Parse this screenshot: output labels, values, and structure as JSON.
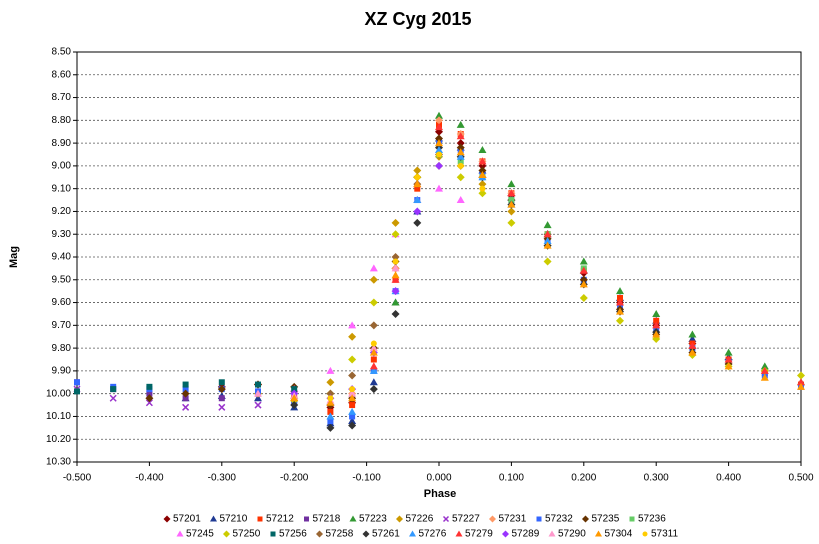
{
  "chart_data": {
    "type": "scatter",
    "title": "XZ Cyg   2015",
    "x_label": "Phase",
    "y_label": "Mag",
    "x": [
      -0.5,
      -0.45,
      -0.4,
      -0.35,
      -0.3,
      -0.25,
      -0.2,
      -0.15,
      -0.12,
      -0.09,
      -0.06,
      -0.03,
      0,
      0.03,
      0.06,
      0.1,
      0.15,
      0.2,
      0.25,
      0.3,
      0.35,
      0.4,
      0.45,
      0.5
    ],
    "xlim": [
      -0.5,
      0.5
    ],
    "xticks": [
      {
        "value": -0.5,
        "label": "-0.500"
      },
      {
        "value": -0.4,
        "label": "-0.400"
      },
      {
        "value": -0.3,
        "label": "-0.300"
      },
      {
        "value": -0.2,
        "label": "-0.200"
      },
      {
        "value": -0.1,
        "label": "-0.100"
      },
      {
        "value": 0,
        "label": "0.000"
      },
      {
        "value": 0.1,
        "label": "0.100"
      },
      {
        "value": 0.2,
        "label": "0.200"
      },
      {
        "value": 0.3,
        "label": "0.300"
      },
      {
        "value": 0.4,
        "label": "0.400"
      },
      {
        "value": 0.5,
        "label": "0.500"
      }
    ],
    "ylim": [
      8.5,
      10.3
    ],
    "y_inverted": true,
    "yticks": [
      {
        "value": 8.5,
        "label": "8.50"
      },
      {
        "value": 8.6,
        "label": "8.60"
      },
      {
        "value": 8.7,
        "label": "8.70"
      },
      {
        "value": 8.8,
        "label": "8.80"
      },
      {
        "value": 8.9,
        "label": "8.90"
      },
      {
        "value": 9.0,
        "label": "9.00"
      },
      {
        "value": 9.1,
        "label": "9.10"
      },
      {
        "value": 9.2,
        "label": "9.20"
      },
      {
        "value": 9.3,
        "label": "9.30"
      },
      {
        "value": 9.4,
        "label": "9.40"
      },
      {
        "value": 9.5,
        "label": "9.50"
      },
      {
        "value": 9.6,
        "label": "9.60"
      },
      {
        "value": 9.7,
        "label": "9.70"
      },
      {
        "value": 9.8,
        "label": "9.80"
      },
      {
        "value": 9.9,
        "label": "9.90"
      },
      {
        "value": 10.0,
        "label": "10.00"
      },
      {
        "value": 10.1,
        "label": "10.10"
      },
      {
        "value": 10.2,
        "label": "10.20"
      },
      {
        "value": 10.3,
        "label": "10.30"
      }
    ],
    "grid": true,
    "legend": "bottom",
    "series": [
      {
        "name": "57201",
        "color": "#8b0000",
        "marker": "diamond",
        "values": [
          null,
          null,
          null,
          null,
          9.97,
          9.96,
          9.99,
          10.06,
          10.04,
          9.8,
          9.45,
          9.05,
          8.85,
          8.9,
          9.0,
          9.13,
          9.3,
          9.47,
          9.6,
          9.7,
          9.78,
          9.85,
          9.9,
          null
        ]
      },
      {
        "name": "57210",
        "color": "#1f3a93",
        "marker": "triangle",
        "values": [
          null,
          null,
          null,
          10.02,
          10.01,
          10.02,
          10.06,
          10.13,
          10.12,
          9.95,
          9.6,
          9.2,
          8.88,
          8.92,
          9.02,
          9.14,
          9.3,
          9.46,
          9.58,
          9.68,
          9.76,
          9.84,
          null,
          null
        ]
      },
      {
        "name": "57212",
        "color": "#ff3300",
        "marker": "square",
        "values": [
          null,
          null,
          null,
          null,
          null,
          null,
          10.02,
          10.08,
          10.05,
          9.85,
          9.5,
          9.1,
          8.82,
          8.86,
          8.98,
          9.12,
          9.3,
          9.46,
          9.58,
          9.68,
          9.78,
          9.85,
          9.91,
          9.96
        ]
      },
      {
        "name": "57218",
        "color": "#7030a0",
        "marker": "square",
        "values": [
          9.95,
          9.98,
          10.0,
          10.02,
          10.02,
          10.0,
          10.03,
          null,
          null,
          null,
          null,
          null,
          null,
          null,
          null,
          null,
          null,
          null,
          null,
          null,
          null,
          null,
          null,
          null
        ]
      },
      {
        "name": "57223",
        "color": "#339933",
        "marker": "triangle",
        "values": [
          null,
          null,
          null,
          null,
          null,
          null,
          null,
          null,
          null,
          null,
          9.6,
          9.15,
          8.78,
          8.82,
          8.93,
          9.08,
          9.26,
          9.42,
          9.55,
          9.65,
          9.74,
          9.82,
          9.88,
          9.95
        ]
      },
      {
        "name": "57226",
        "color": "#cc9900",
        "marker": "diamond",
        "values": [
          null,
          null,
          null,
          null,
          null,
          10.0,
          10.02,
          9.95,
          9.75,
          9.5,
          9.25,
          9.02,
          8.96,
          9.0,
          9.08,
          9.2,
          9.35,
          9.5,
          null,
          null,
          null,
          null,
          null,
          null
        ]
      },
      {
        "name": "57227",
        "color": "#9933cc",
        "marker": "x",
        "values": [
          9.98,
          10.02,
          10.04,
          10.06,
          10.06,
          10.05,
          10.04,
          null,
          null,
          null,
          null,
          null,
          null,
          null,
          null,
          null,
          null,
          null,
          null,
          null,
          null,
          null,
          null,
          null
        ]
      },
      {
        "name": "57231",
        "color": "#ff9966",
        "marker": "diamond",
        "values": [
          null,
          null,
          null,
          null,
          null,
          null,
          null,
          10.05,
          10.0,
          9.8,
          9.45,
          9.05,
          8.8,
          8.86,
          8.98,
          9.12,
          null,
          null,
          null,
          null,
          null,
          null,
          null,
          null
        ]
      },
      {
        "name": "57232",
        "color": "#3366ff",
        "marker": "square",
        "values": [
          9.95,
          9.97,
          9.98,
          9.98,
          9.98,
          9.99,
          10.04,
          10.12,
          10.1,
          9.9,
          9.55,
          9.15,
          8.9,
          8.93,
          9.03,
          9.15,
          9.33,
          9.5,
          9.62,
          9.72,
          9.8,
          9.86,
          9.92,
          9.97
        ]
      },
      {
        "name": "57235",
        "color": "#663300",
        "marker": "diamond",
        "values": [
          null,
          null,
          10.02,
          10.0,
          9.98,
          9.96,
          9.97,
          10.05,
          10.02,
          9.8,
          9.42,
          9.05,
          8.88,
          8.92,
          9.02,
          9.15,
          9.32,
          9.5,
          9.63,
          9.74,
          9.82,
          9.87,
          null,
          null
        ]
      },
      {
        "name": "57236",
        "color": "#66cc66",
        "marker": "square",
        "values": [
          null,
          null,
          null,
          null,
          null,
          null,
          null,
          null,
          null,
          null,
          null,
          null,
          8.95,
          8.98,
          9.05,
          9.15,
          9.3,
          9.45,
          null,
          null,
          null,
          null,
          null,
          null
        ]
      },
      {
        "name": "57245",
        "color": "#ff66ff",
        "marker": "triangle",
        "values": [
          null,
          null,
          null,
          null,
          null,
          null,
          9.98,
          9.9,
          9.7,
          9.45,
          9.3,
          9.15,
          9.1,
          9.15,
          null,
          null,
          null,
          null,
          null,
          null,
          null,
          null,
          null,
          null
        ]
      },
      {
        "name": "57250",
        "color": "#cccc00",
        "marker": "diamond",
        "values": [
          null,
          null,
          null,
          null,
          null,
          null,
          10.03,
          10.0,
          9.85,
          9.6,
          9.3,
          9.05,
          9.0,
          9.05,
          9.12,
          9.25,
          9.42,
          9.58,
          9.68,
          9.76,
          9.83,
          9.88,
          9.9,
          9.92
        ]
      },
      {
        "name": "57256",
        "color": "#006666",
        "marker": "square",
        "values": [
          9.99,
          9.98,
          9.97,
          9.96,
          9.95,
          9.96,
          9.98,
          null,
          null,
          null,
          null,
          null,
          null,
          null,
          null,
          null,
          null,
          null,
          null,
          null,
          null,
          null,
          null,
          null
        ]
      },
      {
        "name": "57258",
        "color": "#996633",
        "marker": "diamond",
        "values": [
          null,
          null,
          null,
          null,
          null,
          null,
          null,
          10.0,
          9.92,
          9.7,
          9.4,
          9.08,
          8.95,
          null,
          null,
          null,
          null,
          null,
          null,
          null,
          null,
          null,
          null,
          null
        ]
      },
      {
        "name": "57261",
        "color": "#333333",
        "marker": "diamond",
        "values": [
          null,
          null,
          null,
          null,
          null,
          null,
          10.05,
          10.15,
          10.14,
          9.98,
          9.65,
          9.25,
          8.92,
          8.96,
          9.05,
          9.17,
          9.35,
          9.52,
          9.64,
          9.73,
          9.8,
          null,
          null,
          null
        ]
      },
      {
        "name": "57276",
        "color": "#3399ff",
        "marker": "triangle",
        "values": [
          null,
          null,
          null,
          null,
          null,
          null,
          null,
          10.1,
          10.08,
          9.9,
          9.55,
          9.15,
          8.93,
          8.96,
          9.05,
          9.17,
          9.33,
          null,
          null,
          null,
          null,
          null,
          null,
          null
        ]
      },
      {
        "name": "57279",
        "color": "#ff3333",
        "marker": "triangle",
        "values": [
          null,
          null,
          null,
          null,
          null,
          null,
          null,
          null,
          null,
          9.88,
          9.5,
          9.08,
          8.83,
          8.87,
          8.98,
          9.12,
          9.3,
          9.46,
          9.6,
          9.7,
          9.79,
          9.85,
          9.9,
          9.95
        ]
      },
      {
        "name": "57289",
        "color": "#9933ff",
        "marker": "diamond",
        "values": [
          null,
          null,
          null,
          null,
          null,
          null,
          10.0,
          10.02,
          9.98,
          9.82,
          9.55,
          9.2,
          9.0,
          null,
          null,
          null,
          null,
          null,
          null,
          null,
          null,
          null,
          null,
          null
        ]
      },
      {
        "name": "57290",
        "color": "#ff99cc",
        "marker": "triangle",
        "values": [
          null,
          null,
          null,
          null,
          null,
          10.0,
          10.01,
          10.03,
          10.0,
          9.8,
          9.45,
          null,
          null,
          null,
          null,
          null,
          null,
          null,
          null,
          null,
          null,
          null,
          null,
          null
        ]
      },
      {
        "name": "57304",
        "color": "#ff9900",
        "marker": "triangle",
        "values": [
          null,
          null,
          null,
          null,
          null,
          null,
          10.02,
          10.04,
          10.02,
          9.82,
          9.48,
          9.08,
          8.9,
          8.94,
          9.04,
          9.17,
          9.35,
          9.52,
          9.64,
          9.74,
          9.82,
          9.88,
          9.93,
          9.97
        ]
      },
      {
        "name": "57311",
        "color": "#ffcc00",
        "marker": "circle",
        "values": [
          null,
          null,
          null,
          null,
          null,
          null,
          null,
          10.02,
          9.98,
          9.78,
          9.42,
          9.05,
          8.95,
          9.0,
          9.1,
          null,
          null,
          null,
          null,
          null,
          null,
          null,
          null,
          null
        ]
      }
    ]
  }
}
